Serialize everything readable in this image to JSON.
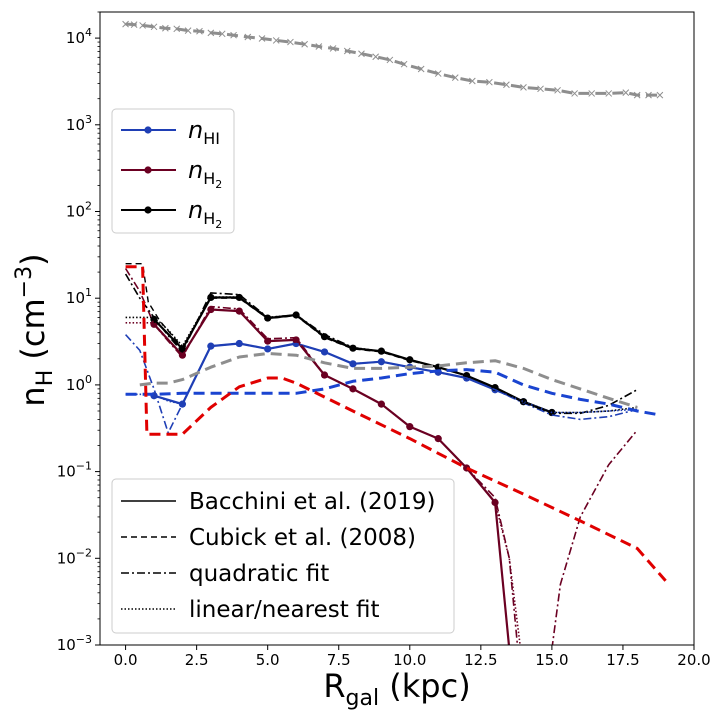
{
  "chart_data": {
    "type": "line",
    "xlabel": "R",
    "xlabel_sub": "gal",
    "xlabel_unit": " (kpc)",
    "ylabel": "n",
    "ylabel_sub": "H",
    "ylabel_unit_open": " (cm",
    "ylabel_unit_exp": "−3",
    "ylabel_unit_close": ")",
    "xlim": [
      -0.9,
      20.0
    ],
    "ylim": [
      0.001,
      20000
    ],
    "yscale": "log",
    "grid": false,
    "xticks": [
      "0.0",
      "2.5",
      "5.0",
      "7.5",
      "10.0",
      "12.5",
      "15.0",
      "17.5",
      "20.0"
    ],
    "xtick_values": [
      0,
      2.5,
      5,
      7.5,
      10,
      12.5,
      15,
      17.5,
      20
    ],
    "yticks": [
      {
        "base": "10",
        "exp": "−3",
        "value": 0.001
      },
      {
        "base": "10",
        "exp": "−2",
        "value": 0.01
      },
      {
        "base": "10",
        "exp": "−1",
        "value": 0.1
      },
      {
        "base": "10",
        "exp": "0",
        "value": 1
      },
      {
        "base": "10",
        "exp": "1",
        "value": 10
      },
      {
        "base": "10",
        "exp": "2",
        "value": 100
      },
      {
        "base": "10",
        "exp": "3",
        "value": 1000
      },
      {
        "base": "10",
        "exp": "4",
        "value": 10000
      }
    ],
    "legend_series": {
      "placement": "upper-left",
      "entries": [
        {
          "base": "n",
          "sub": "HI",
          "subsub": "",
          "color": "#1f3fb5"
        },
        {
          "base": "n",
          "sub": "H",
          "subsub": "2",
          "color": "#6b0022"
        },
        {
          "base": "n",
          "sub": "H",
          "subsub": "2",
          "color": "#000000"
        }
      ]
    },
    "legend_styles": {
      "placement": "lower-left",
      "entries": [
        {
          "label": "Bacchini et al. (2019)",
          "dash": "solid"
        },
        {
          "label": "Cubick et al. (2008)",
          "dash": "dashed"
        },
        {
          "label": "quadratic fit",
          "dash": "dashdot"
        },
        {
          "label": "linear/nearest fit",
          "dash": "dotted"
        }
      ]
    },
    "series": [
      {
        "style": "solid",
        "marker": "circle",
        "color": "#1f3fb5",
        "x": [
          1,
          2,
          3,
          4,
          5,
          6,
          7,
          8,
          9,
          10,
          11,
          12,
          13,
          14,
          15
        ],
        "y": [
          0.75,
          0.6,
          2.8,
          3.0,
          2.6,
          3.0,
          2.4,
          1.75,
          1.85,
          1.6,
          1.4,
          1.2,
          0.88,
          0.64,
          0.48
        ]
      },
      {
        "style": "solid",
        "marker": "circle",
        "color": "#6b0022",
        "x": [
          1,
          2,
          3,
          4,
          5,
          6,
          7,
          8,
          9,
          10,
          11,
          12,
          13,
          13.5
        ],
        "y": [
          5.0,
          2.2,
          7.4,
          7.1,
          3.2,
          3.3,
          1.3,
          0.9,
          0.6,
          0.33,
          0.24,
          0.11,
          0.044,
          0.0009
        ]
      },
      {
        "style": "solid",
        "marker": "circle",
        "color": "#000000",
        "x": [
          1,
          2,
          3,
          4,
          5,
          6,
          7,
          8,
          9,
          10,
          11,
          12,
          13,
          14,
          15
        ],
        "y": [
          5.7,
          2.6,
          10.2,
          10.2,
          5.9,
          6.4,
          3.6,
          2.65,
          2.45,
          1.95,
          1.6,
          1.28,
          0.93,
          0.64,
          0.48
        ]
      },
      {
        "style": "dashdot",
        "marker": "none",
        "color": "#1f3fb5",
        "x": [
          0,
          0.5,
          1,
          1.5,
          2,
          3,
          4,
          5,
          6,
          7,
          8,
          9,
          10,
          11,
          12,
          13,
          14,
          15,
          16,
          17,
          18
        ],
        "y": [
          3.8,
          2.5,
          0.9,
          0.28,
          0.6,
          2.8,
          3.0,
          2.6,
          3.0,
          2.4,
          1.75,
          1.85,
          1.6,
          1.4,
          1.2,
          0.88,
          0.62,
          0.45,
          0.4,
          0.43,
          0.52
        ]
      },
      {
        "style": "dashdot",
        "marker": "none",
        "color": "#6b0022",
        "x": [
          0,
          0.5,
          1,
          1.5,
          2,
          3,
          4,
          5,
          6,
          7,
          8,
          9,
          10,
          11,
          12,
          13,
          13.5,
          13.8
        ],
        "y": [
          22,
          12,
          5.0,
          3.2,
          2.1,
          8.0,
          7.5,
          3.4,
          3.5,
          1.3,
          0.9,
          0.6,
          0.33,
          0.24,
          0.11,
          0.05,
          0.01,
          0.0009
        ]
      },
      {
        "style": "dashdot",
        "marker": "none",
        "color": "#6b0022",
        "x": [
          15.0,
          15.3,
          16,
          17,
          18
        ],
        "y": [
          0.0009,
          0.005,
          0.03,
          0.12,
          0.3
        ]
      },
      {
        "style": "dashdot",
        "marker": "none",
        "color": "#000000",
        "x": [
          0,
          0.5,
          1,
          1.5,
          2,
          3,
          4,
          5,
          6,
          7,
          8,
          9,
          10,
          11,
          12,
          13,
          14,
          15,
          16,
          17,
          18
        ],
        "y": [
          19,
          10,
          6.0,
          3.7,
          2.4,
          11.5,
          11.0,
          6.0,
          6.4,
          3.8,
          2.7,
          2.4,
          1.95,
          1.6,
          1.28,
          0.93,
          0.63,
          0.47,
          0.47,
          0.58,
          0.88
        ]
      },
      {
        "style": "dotted",
        "marker": "none",
        "color": "#000000",
        "x": [
          0,
          0.9,
          1.2,
          1.5,
          2,
          3,
          4,
          5,
          6,
          7,
          8,
          9,
          10,
          11,
          12,
          13,
          14,
          15,
          16,
          17,
          18
        ],
        "y": [
          6.0,
          6.0,
          5.3,
          4.3,
          2.8,
          10.3,
          10.3,
          6.0,
          6.4,
          3.6,
          2.7,
          2.45,
          1.95,
          1.6,
          1.28,
          0.93,
          0.64,
          0.48,
          0.48,
          0.5,
          0.55
        ]
      },
      {
        "style": "dotted",
        "marker": "none",
        "color": "#1f3fb5",
        "x": [
          0,
          0.9,
          1.2,
          1.5,
          2,
          3,
          4,
          5,
          6,
          7,
          8,
          9,
          10,
          11,
          12,
          13,
          14,
          15,
          16,
          17,
          18
        ],
        "y": [
          0.78,
          0.78,
          0.72,
          0.65,
          0.6,
          2.8,
          3.0,
          2.6,
          3.0,
          2.4,
          1.75,
          1.85,
          1.6,
          1.4,
          1.2,
          0.88,
          0.64,
          0.48,
          0.48,
          0.5,
          0.52
        ]
      },
      {
        "style": "dotted",
        "marker": "none",
        "color": "#6b0022",
        "x": [
          0,
          0.9,
          1.2,
          1.5,
          2,
          3,
          4,
          5,
          6,
          7,
          8,
          9,
          10,
          11,
          12,
          13,
          13.5,
          13.9
        ],
        "y": [
          5.2,
          5.2,
          4.3,
          3.3,
          2.2,
          7.4,
          7.1,
          3.2,
          3.3,
          1.3,
          0.9,
          0.6,
          0.33,
          0.24,
          0.11,
          0.044,
          0.01,
          0.0009
        ]
      },
      {
        "style": "dashed",
        "marker": "none",
        "color": "#000000",
        "width": 1.4,
        "x": [
          0,
          0.6,
          0.8,
          1.2,
          2,
          3,
          4,
          5,
          6,
          7,
          8,
          9,
          10,
          11,
          12,
          13,
          14,
          15
        ],
        "y": [
          25,
          25,
          9.0,
          5.5,
          2.7,
          10.0,
          10.0,
          5.8,
          6.3,
          3.5,
          2.6,
          2.4,
          1.9,
          1.6,
          1.27,
          0.92,
          0.63,
          0.48
        ]
      },
      {
        "style": "dashed",
        "marker": "none",
        "color": "#1a44d0",
        "width": 3,
        "x": [
          0,
          1,
          2,
          3,
          4,
          5,
          6,
          7,
          8,
          9,
          10,
          11,
          12,
          13,
          14,
          15,
          16,
          17,
          18,
          18.8
        ],
        "y": [
          0.78,
          0.78,
          0.8,
          0.8,
          0.8,
          0.8,
          0.8,
          0.9,
          1.1,
          1.2,
          1.35,
          1.45,
          1.5,
          1.4,
          1.0,
          0.8,
          0.68,
          0.6,
          0.5,
          0.45
        ]
      },
      {
        "style": "dashed",
        "marker": "none",
        "color": "#e00000",
        "width": 3,
        "x": [
          0,
          0.6,
          0.75,
          1,
          2,
          3,
          4,
          5,
          5.5,
          6,
          8,
          10,
          12,
          14,
          16,
          18,
          19
        ],
        "y": [
          23,
          23,
          0.27,
          0.27,
          0.27,
          0.55,
          0.95,
          1.2,
          1.2,
          1.05,
          0.5,
          0.24,
          0.11,
          0.055,
          0.027,
          0.013,
          0.0055
        ]
      },
      {
        "style": "dashed",
        "marker": "none",
        "color": "#8e8e8e",
        "width": 3,
        "x": [
          0.5,
          1,
          1.5,
          2,
          3,
          4,
          5,
          6,
          7,
          8,
          9,
          10,
          11,
          12,
          13,
          14,
          15,
          16,
          17,
          18
        ],
        "y": [
          1.0,
          1.05,
          1.05,
          1.15,
          1.6,
          2.1,
          2.3,
          2.2,
          1.8,
          1.55,
          1.55,
          1.6,
          1.65,
          1.8,
          1.9,
          1.55,
          1.15,
          0.9,
          0.7,
          0.55
        ]
      },
      {
        "style": "dashed",
        "marker": "x",
        "color": "#8e8e8e",
        "width": 3,
        "x": [
          0,
          0.3,
          0.6,
          1,
          1.4,
          1.8,
          2.2,
          2.6,
          3,
          3.4,
          3.8,
          4.3,
          4.8,
          5.3,
          5.8,
          6.3,
          6.8,
          7.3,
          7.8,
          8.3,
          8.8,
          9.3,
          9.8,
          10.4,
          11,
          11.6,
          12.2,
          12.8,
          13.4,
          14,
          14.6,
          15.2,
          15.8,
          16.4,
          17,
          17.6,
          18,
          18.4,
          18.8
        ],
        "y": [
          14500,
          14300,
          14000,
          13500,
          13000,
          12800,
          12200,
          12000,
          11500,
          11200,
          10800,
          10300,
          9900,
          9400,
          9000,
          8500,
          8000,
          7600,
          7100,
          6600,
          6100,
          5600,
          5000,
          4400,
          3900,
          3500,
          3200,
          3100,
          2900,
          2700,
          2600,
          2500,
          2300,
          2300,
          2300,
          2350,
          2200,
          2200,
          2200
        ]
      }
    ]
  }
}
